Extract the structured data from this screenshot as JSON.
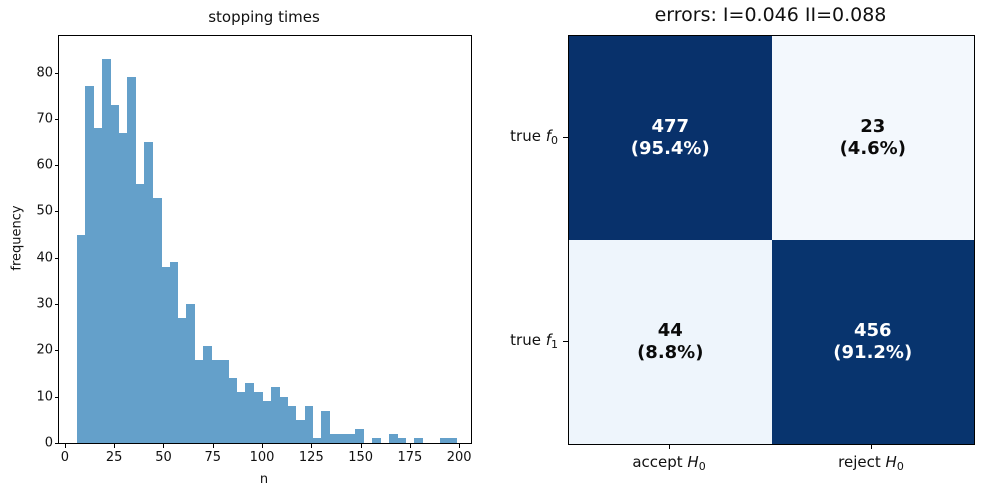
{
  "chart_data": [
    {
      "type": "bar",
      "subtype": "histogram",
      "title": "stopping times",
      "xlabel": "n",
      "ylabel": "frequency",
      "bar_color": "#64a0ca",
      "bin_start": 6.0,
      "bin_width": 4.28,
      "values": [
        45,
        77,
        68,
        83,
        73,
        67,
        79,
        56,
        65,
        53,
        38,
        39,
        27,
        30,
        18,
        21,
        18,
        18,
        14,
        11,
        13,
        11,
        9,
        12,
        10,
        8,
        5,
        8,
        1,
        7,
        2,
        2,
        2,
        3,
        0,
        1,
        0,
        2,
        1,
        0,
        1,
        0,
        0,
        1,
        1
      ],
      "x_ticks": [
        0,
        25,
        50,
        75,
        100,
        125,
        150,
        175,
        200
      ],
      "y_ticks": [
        0,
        10,
        20,
        30,
        40,
        50,
        60,
        70,
        80
      ],
      "xlim": [
        -3,
        206
      ],
      "ylim": [
        0,
        87.9
      ],
      "grid": false,
      "legend": null
    },
    {
      "type": "heatmap",
      "subtype": "confusion-matrix",
      "title": "errors: I=0.046 II=0.088",
      "row_labels": [
        {
          "pre": "true ",
          "sym": "f",
          "sub": "0"
        },
        {
          "pre": "true ",
          "sym": "f",
          "sub": "1"
        }
      ],
      "col_labels": [
        {
          "pre": "accept ",
          "sym": "H",
          "sub": "0"
        },
        {
          "pre": "reject ",
          "sym": "H",
          "sub": "0"
        }
      ],
      "cells": [
        [
          {
            "value": "477",
            "pct": "(95.4%)",
            "bg": "#08316b",
            "fg": "#ffffff"
          },
          {
            "value": "23",
            "pct": "(4.6%)",
            "bg": "#f3f8fd",
            "fg": "#0a0a0a"
          }
        ],
        [
          {
            "value": "44",
            "pct": "(8.8%)",
            "bg": "#eef5fc",
            "fg": "#0a0a0a"
          },
          {
            "value": "456",
            "pct": "(91.2%)",
            "bg": "#08346e",
            "fg": "#ffffff"
          }
        ]
      ]
    }
  ]
}
